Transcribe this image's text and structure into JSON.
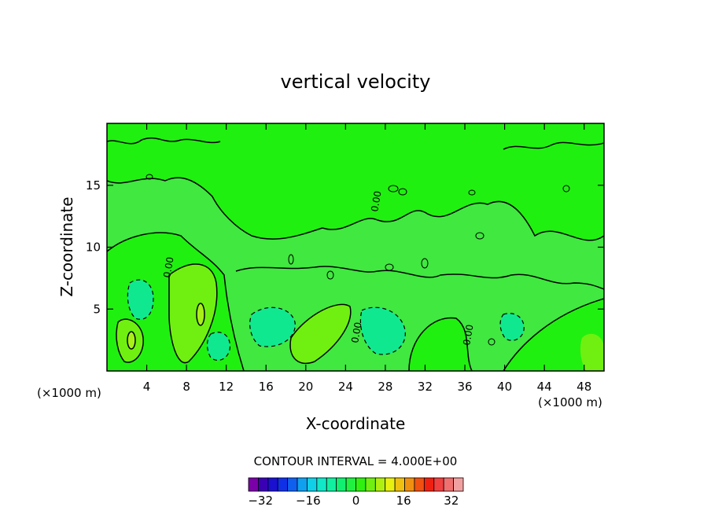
{
  "chart_data": {
    "type": "heatmap",
    "title": "vertical velocity",
    "xlabel": "X-coordinate",
    "ylabel": "Z-coordinate",
    "x_unit_label": "(×1000 m)",
    "xlim": [
      0,
      50
    ],
    "ylim": [
      0,
      20
    ],
    "x_ticks": [
      4,
      8,
      12,
      16,
      20,
      24,
      28,
      32,
      36,
      40,
      44,
      48
    ],
    "x_tick_labels": [
      "4",
      "8",
      "12",
      "16",
      "20",
      "24",
      "28",
      "32",
      "36",
      "40",
      "44",
      "48"
    ],
    "y_ticks": [
      5,
      10,
      15
    ],
    "y_tick_labels": [
      "5",
      "10",
      "15"
    ],
    "contour_interval_text": "CONTOUR INTERVAL = 4.000E+00",
    "contour_labels": [
      "0.00",
      "0.00",
      "0.00",
      "0.00"
    ],
    "colorbar": {
      "min": -36,
      "max": 36,
      "step": 4,
      "tick_values": [
        -32,
        -16,
        0,
        16,
        32
      ],
      "tick_labels": [
        "−32",
        "−16",
        "0",
        "16",
        "32"
      ],
      "colors": [
        "#7a00a8",
        "#3a00b4",
        "#1a10d0",
        "#1030e8",
        "#1060f0",
        "#10a0f0",
        "#10d0e8",
        "#10e8c8",
        "#10f0a0",
        "#10f070",
        "#20f040",
        "#30f010",
        "#70f010",
        "#b0f010",
        "#e8f010",
        "#f0c010",
        "#f09010",
        "#f05010",
        "#f02010",
        "#f04040",
        "#f07070",
        "#f0a0a0"
      ]
    },
    "field_colors": {
      "background": "#40e840",
      "band_0_4": "#20f010",
      "band_4_8": "#70f010",
      "band_8_12": "#a8f018",
      "band_neg4_0": "#10e850",
      "band_neg8_neg4": "#10e890"
    }
  }
}
